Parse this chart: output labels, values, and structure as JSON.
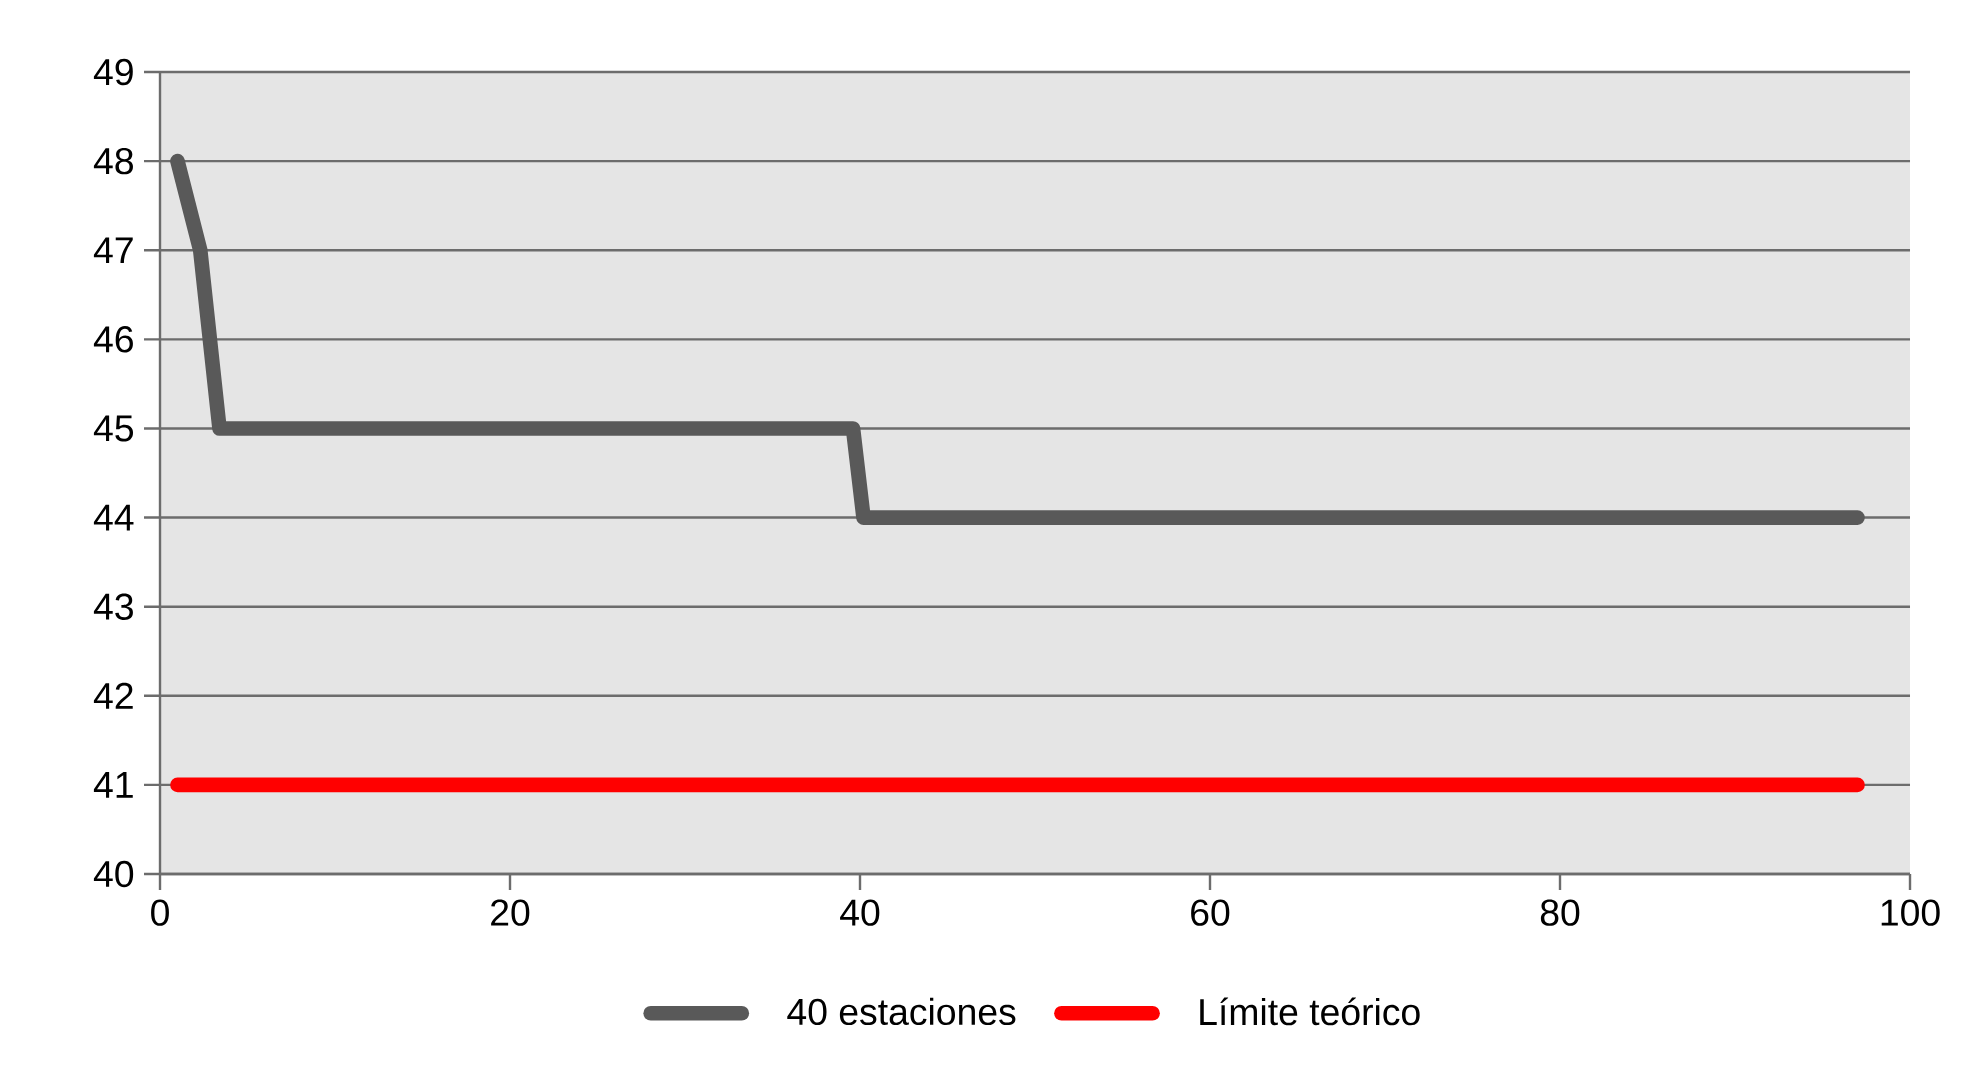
{
  "chart_data": {
    "type": "line",
    "series": [
      {
        "name": "40 estaciones",
        "color": "#595959",
        "x": [
          1,
          2.3,
          3.4,
          39.6,
          40.2,
          97
        ],
        "values": [
          48,
          47,
          45,
          45,
          44,
          44
        ]
      },
      {
        "name": "Límite teórico",
        "color": "#ff0000",
        "x": [
          1,
          97
        ],
        "values": [
          41,
          41
        ]
      }
    ],
    "xlim": [
      0,
      100
    ],
    "xticks": [
      0,
      20,
      40,
      60,
      80,
      100
    ],
    "ylim": [
      40,
      49
    ],
    "yticks": [
      40,
      41,
      42,
      43,
      44,
      45,
      46,
      47,
      48,
      49
    ],
    "grid": "y",
    "legend": "bottom",
    "marker": "none",
    "line_style": "solid"
  }
}
